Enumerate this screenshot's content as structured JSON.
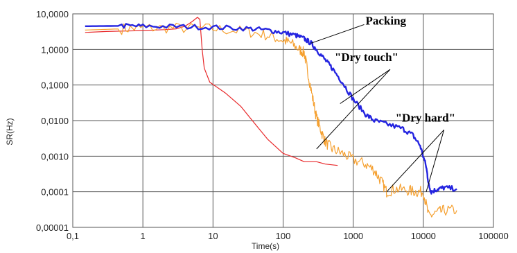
{
  "chart_data": {
    "type": "line",
    "xlabel": "Time(s)",
    "ylabel": "SR(Hz)",
    "x_scale": "log",
    "y_scale": "log",
    "xlim": [
      0.1,
      100000
    ],
    "ylim": [
      1e-05,
      10
    ],
    "grid": true,
    "x_ticks": [
      {
        "value": 0.1,
        "label": "0,1"
      },
      {
        "value": 1,
        "label": "1"
      },
      {
        "value": 10,
        "label": "10"
      },
      {
        "value": 100,
        "label": "100"
      },
      {
        "value": 1000,
        "label": "1000"
      },
      {
        "value": 10000,
        "label": "10000"
      },
      {
        "value": 100000,
        "label": "100000"
      }
    ],
    "y_ticks": [
      {
        "value": 10,
        "label": "10,0000"
      },
      {
        "value": 1,
        "label": "1,0000"
      },
      {
        "value": 0.1,
        "label": "0,1000"
      },
      {
        "value": 0.01,
        "label": "0,0100"
      },
      {
        "value": 0.001,
        "label": "0,0010"
      },
      {
        "value": 0.0001,
        "label": "0,0001"
      },
      {
        "value": 1e-05,
        "label": "0,00001"
      }
    ],
    "series": [
      {
        "color": "#e8282a",
        "width": 1.2,
        "points": [
          [
            0.15,
            3.0
          ],
          [
            0.3,
            3.2
          ],
          [
            0.6,
            3.3
          ],
          [
            1,
            3.4
          ],
          [
            2,
            3.6
          ],
          [
            3,
            3.8
          ],
          [
            4,
            4.5
          ],
          [
            5,
            6.0
          ],
          [
            6,
            8.0
          ],
          [
            6.5,
            7.0
          ],
          [
            7,
            1.0
          ],
          [
            7.5,
            0.3
          ],
          [
            9,
            0.12
          ],
          [
            15,
            0.06
          ],
          [
            25,
            0.025
          ],
          [
            40,
            0.008
          ],
          [
            60,
            0.003
          ],
          [
            100,
            0.0012
          ],
          [
            150,
            0.0009
          ],
          [
            200,
            0.0007
          ],
          [
            300,
            0.0007
          ],
          [
            400,
            0.0006
          ],
          [
            600,
            0.00055
          ]
        ]
      },
      {
        "color": "#f5a030",
        "width": 1.2,
        "noise": 0.16,
        "points": [
          [
            0.15,
            3.5
          ],
          [
            0.5,
            3.8
          ],
          [
            1,
            4.0
          ],
          [
            3,
            4.0
          ],
          [
            10,
            3.8
          ],
          [
            30,
            3.2
          ],
          [
            60,
            2.5
          ],
          [
            100,
            1.8
          ],
          [
            130,
            1.5
          ],
          [
            170,
            1.0
          ],
          [
            200,
            0.8
          ],
          [
            220,
            0.3
          ],
          [
            260,
            0.05
          ],
          [
            300,
            0.012
          ],
          [
            350,
            0.005
          ],
          [
            400,
            0.0025
          ],
          [
            500,
            0.0016
          ],
          [
            700,
            0.0012
          ],
          [
            1000,
            0.0008
          ],
          [
            1500,
            0.0006
          ],
          [
            2000,
            0.0004
          ],
          [
            2500,
            0.0002
          ],
          [
            3000,
            0.0001
          ],
          [
            4000,
            0.00012
          ],
          [
            6000,
            0.00011
          ],
          [
            8000,
            0.0001
          ],
          [
            10000,
            0.0001
          ],
          [
            12000,
            2e-05
          ],
          [
            15000,
            2.5e-05
          ],
          [
            20000,
            3e-05
          ],
          [
            30000,
            3e-05
          ]
        ]
      },
      {
        "color": "#2424e0",
        "width": 2.4,
        "noise": 0.07,
        "points": [
          [
            0.15,
            4.5
          ],
          [
            0.5,
            4.6
          ],
          [
            1,
            4.5
          ],
          [
            3,
            4.4
          ],
          [
            10,
            4.2
          ],
          [
            30,
            3.9
          ],
          [
            60,
            3.5
          ],
          [
            100,
            3.0
          ],
          [
            150,
            2.5
          ],
          [
            200,
            2.0
          ],
          [
            250,
            1.5
          ],
          [
            300,
            1.0
          ],
          [
            400,
            0.5
          ],
          [
            500,
            0.3
          ],
          [
            700,
            0.12
          ],
          [
            1000,
            0.04
          ],
          [
            1500,
            0.015
          ],
          [
            2000,
            0.01
          ],
          [
            3000,
            0.008
          ],
          [
            5000,
            0.006
          ],
          [
            7000,
            0.004
          ],
          [
            9000,
            0.002
          ],
          [
            11000,
            0.0005
          ],
          [
            12000,
            0.00015
          ],
          [
            13000,
            0.0001
          ],
          [
            16000,
            0.00012
          ],
          [
            20000,
            0.00013
          ],
          [
            30000,
            0.00012
          ]
        ]
      }
    ],
    "annotations": [
      {
        "text": "Packing",
        "anchor": [
          250,
          1.5
        ],
        "label_at": [
          1500,
          5.0
        ],
        "arrows_to": [
          [
            250,
            1.5
          ]
        ]
      },
      {
        "text": "\"Dry touch\"",
        "anchor": [
          3000,
          0.3
        ],
        "label_at": [
          3000,
          0.3
        ],
        "arrows_to": [
          [
            650,
            0.03
          ],
          [
            300,
            0.0016
          ]
        ]
      },
      {
        "text": "\"Dry hard\"",
        "anchor": [
          14000,
          0.006
        ],
        "label_at": [
          14000,
          0.006
        ],
        "arrows_to": [
          [
            3000,
            0.0001
          ],
          [
            11000,
            0.0001
          ]
        ]
      }
    ]
  }
}
